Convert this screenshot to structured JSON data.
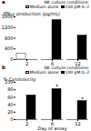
{
  "chart_data": [
    {
      "type": "bar",
      "panel_label": "a",
      "ylabel": "IFN-γ production (pg/mL)",
      "categories": [
        "2",
        "6",
        "12"
      ],
      "series": [
        {
          "name": "Medium alone",
          "color": "white",
          "values": [
            230,
            0,
            0
          ]
        },
        {
          "name": "100 pM IL-2",
          "color": "black",
          "values": [
            0,
            1480,
            900
          ]
        }
      ],
      "ylim": [
        0,
        1600
      ],
      "yticks": [
        0,
        400,
        800,
        1200,
        1600
      ],
      "legend_title": "NK culture conditions:",
      "legend": "upper right"
    },
    {
      "type": "bar",
      "panel_label": "b",
      "ylabel": "% Cytotoxicity",
      "xlabel": "Day of assay",
      "categories": [
        "2",
        "6",
        "12"
      ],
      "series": [
        {
          "name": "Medium alone",
          "color": "white",
          "values": [
            0,
            0,
            0
          ]
        },
        {
          "name": "100 pM IL-2",
          "color": "black",
          "values": [
            65,
            82,
            50
          ]
        }
      ],
      "ylim": [
        0,
        100
      ],
      "yticks": [
        0,
        20,
        40,
        60,
        80,
        100
      ],
      "legend_title": "NK culture conditions:",
      "legend": "upper right",
      "annotations": [
        {
          "category": "6",
          "series": "100 pM IL-2",
          "text": "*"
        },
        {
          "category": "12",
          "series": "100 pM IL-2",
          "text": "*"
        }
      ]
    }
  ]
}
